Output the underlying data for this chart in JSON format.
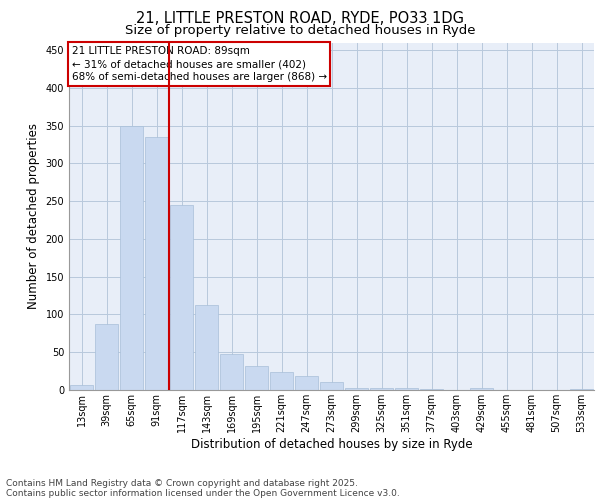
{
  "title_line1": "21, LITTLE PRESTON ROAD, RYDE, PO33 1DG",
  "title_line2": "Size of property relative to detached houses in Ryde",
  "xlabel": "Distribution of detached houses by size in Ryde",
  "ylabel": "Number of detached properties",
  "categories": [
    "13sqm",
    "39sqm",
    "65sqm",
    "91sqm",
    "117sqm",
    "143sqm",
    "169sqm",
    "195sqm",
    "221sqm",
    "247sqm",
    "273sqm",
    "299sqm",
    "325sqm",
    "351sqm",
    "377sqm",
    "403sqm",
    "429sqm",
    "455sqm",
    "481sqm",
    "507sqm",
    "533sqm"
  ],
  "values": [
    6,
    87,
    349,
    335,
    245,
    112,
    48,
    32,
    24,
    19,
    10,
    3,
    2,
    2,
    1,
    0,
    3,
    0,
    0,
    0,
    1
  ],
  "bar_color": "#c9d9f0",
  "bar_edge_color": "#a8bfd8",
  "grid_color": "#b8c8dc",
  "bg_color": "#e8eef8",
  "property_line_x": 3.5,
  "annotation_text": "21 LITTLE PRESTON ROAD: 89sqm\n← 31% of detached houses are smaller (402)\n68% of semi-detached houses are larger (868) →",
  "annotation_box_color": "#ffffff",
  "annotation_box_edge": "#cc0000",
  "property_line_color": "#cc0000",
  "footer_line1": "Contains HM Land Registry data © Crown copyright and database right 2025.",
  "footer_line2": "Contains public sector information licensed under the Open Government Licence v3.0.",
  "ylim": [
    0,
    460
  ],
  "title_fontsize": 10.5,
  "subtitle_fontsize": 9.5,
  "tick_fontsize": 7,
  "ylabel_fontsize": 8.5,
  "xlabel_fontsize": 8.5,
  "annotation_fontsize": 7.5,
  "footer_fontsize": 6.5
}
